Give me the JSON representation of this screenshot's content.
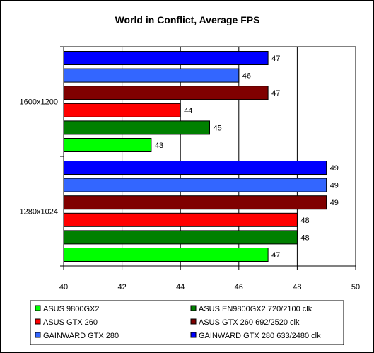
{
  "chart_data": {
    "type": "bar",
    "orientation": "horizontal",
    "title": "World in Conflict, Average FPS",
    "xlabel": "",
    "ylabel": "",
    "xlim": [
      40,
      50
    ],
    "x_ticks": [
      40,
      42,
      44,
      46,
      48,
      50
    ],
    "x_tick_labels": [
      "40",
      "42",
      "44",
      "46",
      "48",
      "50"
    ],
    "grid": "vertical gridlines at each tick",
    "legend_position": "bottom",
    "categories": [
      "1600x1200",
      "1280x1024"
    ],
    "series": [
      {
        "name": "ASUS 9800GX2",
        "color": "#00ff00",
        "values": [
          43,
          47
        ]
      },
      {
        "name": "ASUS EN9800GX2 720/2100 clk",
        "color": "#008000",
        "values": [
          45,
          48
        ]
      },
      {
        "name": "ASUS GTX 260",
        "color": "#ff0000",
        "values": [
          44,
          48
        ]
      },
      {
        "name": "ASUS GTX 260 692/2520 clk",
        "color": "#800000",
        "values": [
          47,
          49
        ]
      },
      {
        "name": "GAINWARD GTX 280",
        "color": "#3366ff",
        "values": [
          46,
          49
        ]
      },
      {
        "name": "GAINWARD GTX 280 633/2480 clk",
        "color": "#0000ff",
        "values": [
          47,
          49
        ]
      }
    ],
    "value_labels": [
      [
        "43",
        "47"
      ],
      [
        "45",
        "48"
      ],
      [
        "44",
        "48"
      ],
      [
        "47",
        "49"
      ],
      [
        "46",
        "49"
      ],
      [
        "47",
        "49"
      ]
    ]
  }
}
